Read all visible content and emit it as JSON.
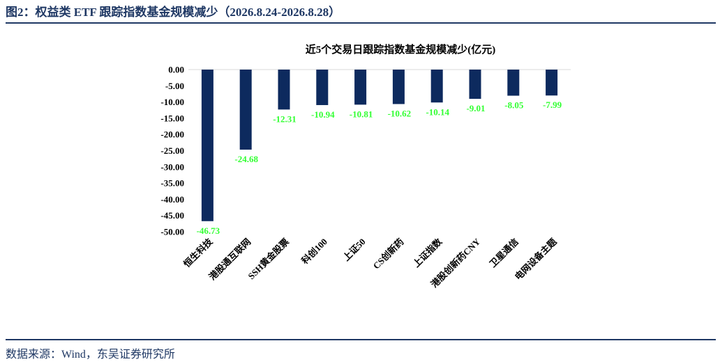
{
  "figure": {
    "title": "图2：权益类 ETF 跟踪指数基金规模减少（2026.8.24-2026.8.28）",
    "source": "数据来源：Wind，东吴证券研究所"
  },
  "colors": {
    "accent": "#1f3864",
    "bar": "#0d2a5e",
    "data_label": "#33ff33",
    "gridline": "#d9d9d9"
  },
  "chart_data": {
    "type": "bar",
    "title": "近5个交易日跟踪指数基金规模减少(亿元)",
    "categories": [
      "恒生科技",
      "港股通互联网",
      "SSH黄金股票",
      "科创100",
      "上证50",
      "CS创新药",
      "上证指数",
      "港股创新药CNY",
      "卫星通信",
      "电网设备主题"
    ],
    "values": [
      -46.73,
      -24.68,
      -12.31,
      -10.94,
      -10.81,
      -10.62,
      -10.14,
      -9.01,
      -8.05,
      -7.99
    ],
    "value_labels": [
      "-46.73",
      "-24.68",
      "-12.31",
      "-10.94",
      "-10.81",
      "-10.62",
      "-10.14",
      "-9.01",
      "-8.05",
      "-7.99"
    ],
    "yticks": [
      "0.00",
      "-5.00",
      "-10.00",
      "-15.00",
      "-20.00",
      "-25.00",
      "-30.00",
      "-35.00",
      "-40.00",
      "-45.00",
      "-50.00"
    ],
    "ylim": [
      -50,
      0
    ],
    "grid": false,
    "legend": "none"
  }
}
